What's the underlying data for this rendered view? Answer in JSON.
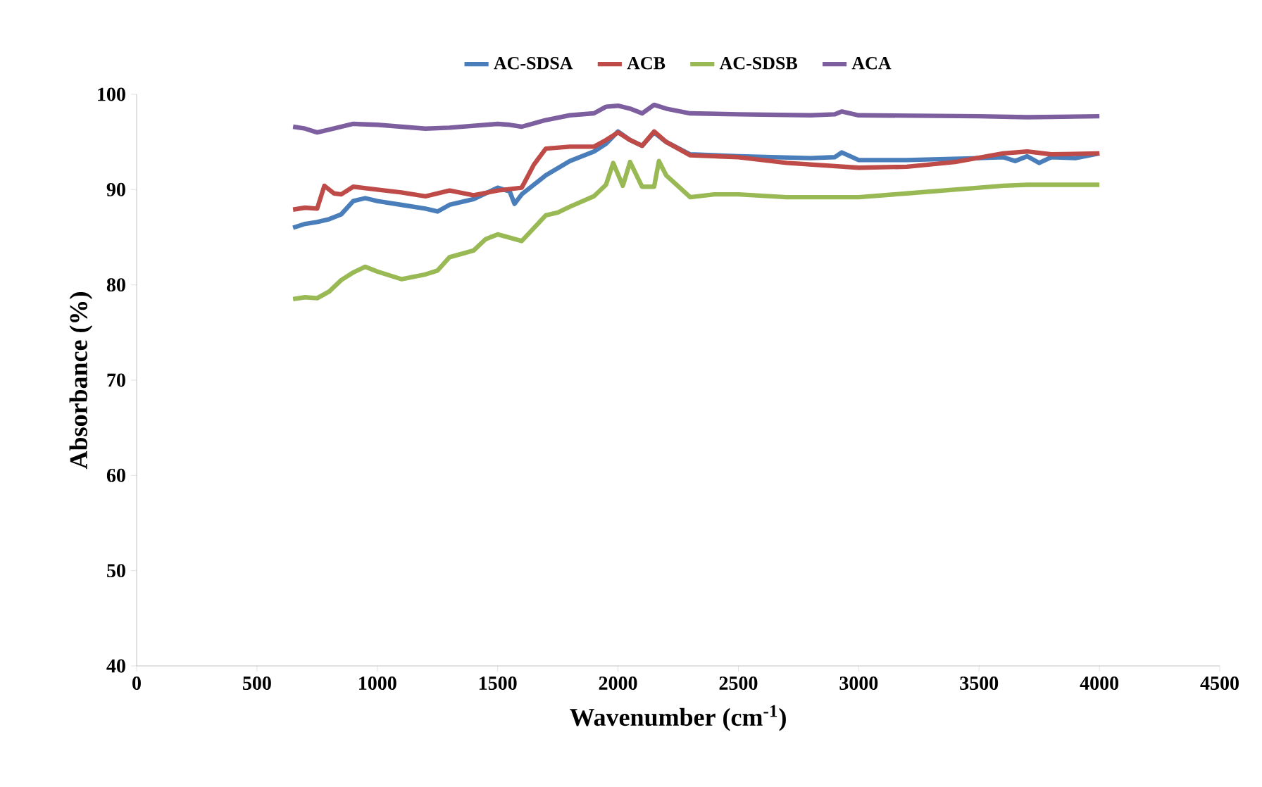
{
  "chart_data": {
    "type": "line",
    "xlabel": "Wavenumber (cm$^{-1}$)",
    "ylabel": "Absorbance (%)",
    "xlim": [
      0,
      4500
    ],
    "xticks": [
      0,
      500,
      1000,
      1500,
      2000,
      2500,
      3000,
      3500,
      4000,
      4500
    ],
    "ylim": [
      40,
      100
    ],
    "yticks": [
      40,
      50,
      60,
      70,
      80,
      90,
      100
    ],
    "grid": false,
    "legend": "top",
    "marker": "none",
    "line_style": "solid",
    "series": [
      {
        "name": "AC-SDSA",
        "color": "#4a7ebb",
        "x": [
          650,
          700,
          750,
          800,
          850,
          900,
          950,
          1000,
          1100,
          1200,
          1250,
          1300,
          1400,
          1500,
          1550,
          1570,
          1600,
          1700,
          1800,
          1900,
          1950,
          2000,
          2050,
          2100,
          2150,
          2200,
          2300,
          2500,
          2800,
          2900,
          2930,
          3000,
          3200,
          3500,
          3600,
          3650,
          3700,
          3750,
          3800,
          3900,
          4000
        ],
        "values": [
          86.0,
          86.4,
          86.6,
          86.9,
          87.4,
          88.8,
          89.1,
          88.8,
          88.4,
          88.0,
          87.7,
          88.4,
          89.0,
          90.2,
          89.8,
          88.5,
          89.5,
          91.5,
          93.0,
          94.0,
          94.8,
          96.1,
          95.2,
          94.6,
          96.0,
          95.0,
          93.7,
          93.5,
          93.3,
          93.4,
          93.9,
          93.1,
          93.1,
          93.3,
          93.4,
          93.0,
          93.5,
          92.8,
          93.4,
          93.3,
          93.8
        ]
      },
      {
        "name": "ACB",
        "color": "#be4b48",
        "x": [
          650,
          700,
          750,
          780,
          820,
          850,
          900,
          1000,
          1100,
          1200,
          1300,
          1400,
          1500,
          1600,
          1650,
          1700,
          1800,
          1900,
          1950,
          2000,
          2050,
          2100,
          2150,
          2200,
          2300,
          2500,
          2700,
          3000,
          3200,
          3400,
          3600,
          3700,
          3800,
          4000
        ],
        "values": [
          87.9,
          88.1,
          88.0,
          90.4,
          89.6,
          89.5,
          90.3,
          90.0,
          89.7,
          89.3,
          89.9,
          89.4,
          89.9,
          90.2,
          92.6,
          94.3,
          94.5,
          94.5,
          95.2,
          96.0,
          95.2,
          94.6,
          96.1,
          95.0,
          93.6,
          93.4,
          92.8,
          92.3,
          92.4,
          92.9,
          93.8,
          94.0,
          93.7,
          93.8
        ]
      },
      {
        "name": "AC-SDSB",
        "color": "#98b954",
        "x": [
          650,
          700,
          750,
          800,
          850,
          900,
          950,
          1000,
          1100,
          1200,
          1250,
          1300,
          1400,
          1450,
          1500,
          1600,
          1700,
          1750,
          1800,
          1900,
          1950,
          1980,
          2020,
          2050,
          2100,
          2150,
          2170,
          2200,
          2300,
          2400,
          2500,
          2700,
          3000,
          3200,
          3500,
          3600,
          3700,
          4000
        ],
        "values": [
          78.5,
          78.7,
          78.6,
          79.3,
          80.5,
          81.3,
          81.9,
          81.4,
          80.6,
          81.1,
          81.5,
          82.9,
          83.6,
          84.8,
          85.3,
          84.6,
          87.3,
          87.6,
          88.2,
          89.3,
          90.5,
          92.8,
          90.4,
          92.9,
          90.3,
          90.3,
          93.0,
          91.5,
          89.2,
          89.5,
          89.5,
          89.2,
          89.2,
          89.6,
          90.2,
          90.4,
          90.5,
          90.5
        ]
      },
      {
        "name": "ACA",
        "color": "#7d5fa0",
        "x": [
          650,
          700,
          750,
          800,
          900,
          1000,
          1200,
          1300,
          1500,
          1550,
          1600,
          1700,
          1800,
          1900,
          1950,
          2000,
          2050,
          2100,
          2150,
          2200,
          2300,
          2500,
          2800,
          2900,
          2930,
          3000,
          3500,
          3700,
          4000
        ],
        "values": [
          96.6,
          96.4,
          96.0,
          96.3,
          96.9,
          96.8,
          96.4,
          96.5,
          96.9,
          96.8,
          96.6,
          97.3,
          97.8,
          98.0,
          98.7,
          98.8,
          98.5,
          98.0,
          98.9,
          98.5,
          98.0,
          97.9,
          97.8,
          97.9,
          98.2,
          97.8,
          97.7,
          97.6,
          97.7
        ]
      }
    ]
  }
}
